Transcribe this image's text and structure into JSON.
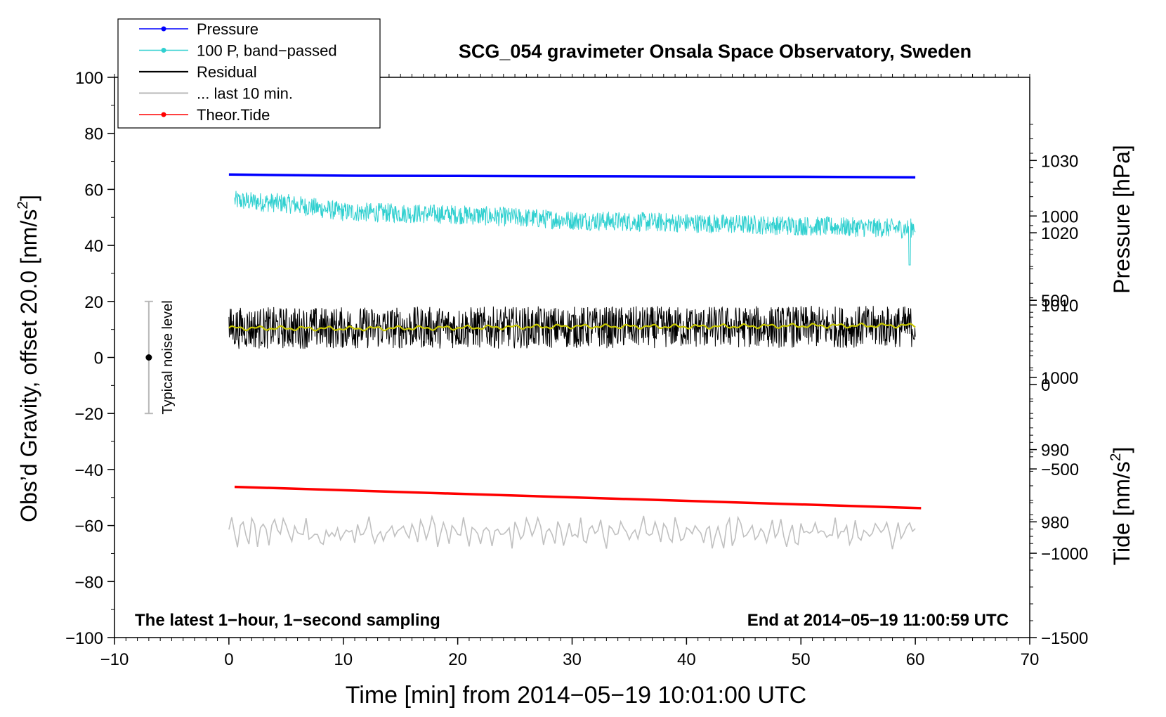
{
  "chart_data": {
    "type": "line",
    "title": "SCG_054 gravimeter Onsala Space Observatory, Sweden",
    "xlabel": "Time [min] from 2014−05−19 10:01:00 UTC",
    "ylabel_left": "Obs’d Gravity, offset 20.0 [nm/s²]",
    "ylabel_left_main": "Obs’d Gravity, offset 20.0 [nm/s",
    "ylabel_left_sup": "2",
    "ylabel_left_end": "]",
    "ylabel_right_top": "Pressure [hPa]",
    "ylabel_right_bottom": "Tide [nm/s²]",
    "ylabel_right_bottom_main": "Tide [nm/s",
    "ylabel_right_bottom_sup": "2",
    "ylabel_right_bottom_end": "]",
    "xlim": [
      -10,
      70
    ],
    "ylim_left": [
      -100,
      100
    ],
    "x_ticks": [
      -10,
      0,
      10,
      20,
      30,
      40,
      50,
      60,
      70
    ],
    "x_tick_labels": [
      "−10",
      "0",
      "10",
      "20",
      "30",
      "40",
      "50",
      "60",
      "70"
    ],
    "y_left_ticks": [
      -100,
      -80,
      -60,
      -40,
      -20,
      0,
      20,
      40,
      60,
      80,
      100
    ],
    "y_left_tick_labels": [
      "−100",
      "−80",
      "−60",
      "−40",
      "−20",
      "0",
      "20",
      "40",
      "60",
      "80",
      "100"
    ],
    "pressure_axis": {
      "ticks": [
        980,
        990,
        1000,
        1010,
        1020,
        1030
      ],
      "tick_labels": [
        "980",
        "990",
        "1000",
        "1010",
        "1020",
        "1030"
      ],
      "left_ref": [
        20,
        1010.5
      ],
      "scale": 2.58
    },
    "tide_axis": {
      "ticks": [
        -1500,
        -1000,
        -500,
        0,
        500,
        1000
      ],
      "tick_labels": [
        "−1500",
        "−1000",
        "−500",
        "0",
        "500",
        "1000"
      ],
      "left_ref": [
        -100,
        -1500
      ],
      "scale": 0.0602
    },
    "legend": {
      "position": "top-left",
      "entries": [
        {
          "label": "Pressure",
          "color": "#0000ff",
          "marker": true
        },
        {
          "label": "100 P, band−passed",
          "color": "#30d0d0",
          "marker": true
        },
        {
          "label": "Residual",
          "color": "#000000",
          "marker": false
        },
        {
          "label": "... last 10 min.",
          "color": "#c0c0c0",
          "marker": false
        },
        {
          "label": "Theor.Tide",
          "color": "#ff0000",
          "marker": true
        }
      ]
    },
    "series": [
      {
        "name": "Pressure",
        "color": "#0000ff",
        "axis": "left",
        "kind": "smooth",
        "x": [
          0,
          10,
          20,
          30,
          40,
          50,
          60
        ],
        "y": [
          65.3,
          64.9,
          64.8,
          64.7,
          64.6,
          64.5,
          64.3
        ]
      },
      {
        "name": "100 P, band−passed",
        "color": "#30d0d0",
        "axis": "left",
        "kind": "noisy",
        "trend_x": [
          0.5,
          5,
          10,
          20,
          30,
          40,
          50,
          59.5,
          60
        ],
        "trend_y": [
          56,
          55,
          52,
          51,
          49,
          48,
          47,
          46,
          47
        ],
        "amplitude": 3.5,
        "spike_at": 59.5,
        "spike_min": 33
      },
      {
        "name": "Residual",
        "color": "#000000",
        "axis": "left",
        "kind": "noisy",
        "trend_x": [
          0,
          60
        ],
        "trend_y": [
          10.5,
          11
        ],
        "amplitude": 7.5
      },
      {
        "name": "Residual smoothed",
        "color": "#c8c800",
        "axis": "left",
        "kind": "smooth-wiggle",
        "trend_x": [
          0,
          10,
          20,
          30,
          40,
          50,
          60
        ],
        "trend_y": [
          10.5,
          10.3,
          10.6,
          11.1,
          11.0,
          11.3,
          11.4
        ]
      },
      {
        "name": "... last 10 min.",
        "color": "#c0c0c0",
        "axis": "left",
        "kind": "noisy",
        "trend_x": [
          0,
          60
        ],
        "trend_y": [
          -62.5,
          -62.5
        ],
        "amplitude": 5,
        "samples": 240
      },
      {
        "name": "Theor.Tide",
        "color": "#ff0000",
        "axis": "left",
        "kind": "smooth",
        "x": [
          0.5,
          60.5
        ],
        "y": [
          -46.2,
          -53.8
        ]
      }
    ],
    "noise_bar": {
      "label": "Typical noise level",
      "x": -7,
      "y_center": 0,
      "y_low": -20,
      "y_high": 20
    },
    "annotation_left": "The latest 1−hour, 1−second sampling",
    "annotation_right": "End at 2014−05−19 11:00:59 UTC"
  }
}
